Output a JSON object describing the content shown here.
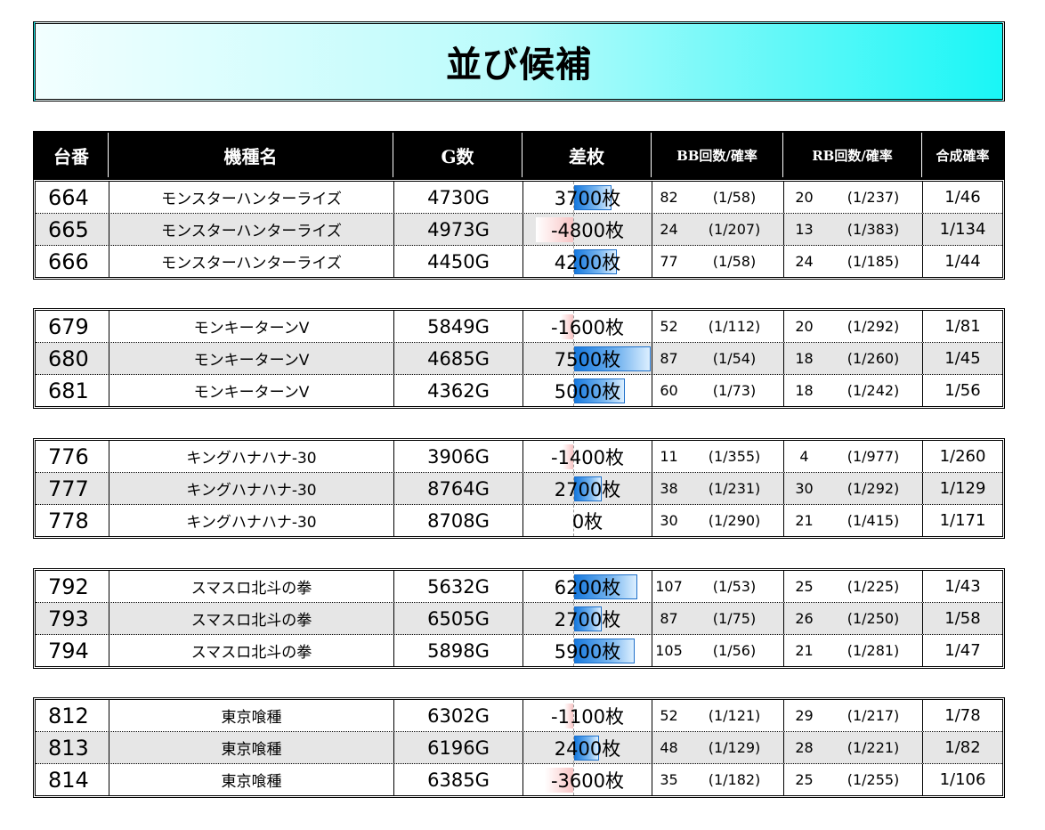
{
  "title": "並び候補",
  "headers": {
    "unit_no": "台番",
    "machine": "機種名",
    "games": "G数",
    "diff": "差枚",
    "bb": "BB回数/確率",
    "rb": "RB回数/確率",
    "combined": "合成確率"
  },
  "colors": {
    "title_gradient": [
      "#f2ffff",
      "#19f6f6"
    ],
    "header_bg": "#000000",
    "alt_row_bg": "#e6e6e6",
    "positive_bar": "#1679de",
    "negative_bar": "#f7c4c4"
  },
  "diff_scale_max": 7500,
  "groups": [
    {
      "rows": [
        {
          "no": "664",
          "name": "モンスターハンターライズ",
          "games": "4730G",
          "diff_value": 3700,
          "diff": "3700枚",
          "bb": "82",
          "bb_rate": "(1/58)",
          "rb": "20",
          "rb_rate": "(1/237)",
          "combined": "1/46"
        },
        {
          "no": "665",
          "name": "モンスターハンターライズ",
          "games": "4973G",
          "diff_value": -4800,
          "diff": "-4800枚",
          "bb": "24",
          "bb_rate": "(1/207)",
          "rb": "13",
          "rb_rate": "(1/383)",
          "combined": "1/134"
        },
        {
          "no": "666",
          "name": "モンスターハンターライズ",
          "games": "4450G",
          "diff_value": 4200,
          "diff": "4200枚",
          "bb": "77",
          "bb_rate": "(1/58)",
          "rb": "24",
          "rb_rate": "(1/185)",
          "combined": "1/44"
        }
      ]
    },
    {
      "rows": [
        {
          "no": "679",
          "name": "モンキーターンV",
          "games": "5849G",
          "diff_value": -1600,
          "diff": "-1600枚",
          "bb": "52",
          "bb_rate": "(1/112)",
          "rb": "20",
          "rb_rate": "(1/292)",
          "combined": "1/81"
        },
        {
          "no": "680",
          "name": "モンキーターンV",
          "games": "4685G",
          "diff_value": 7500,
          "diff": "7500枚",
          "bb": "87",
          "bb_rate": "(1/54)",
          "rb": "18",
          "rb_rate": "(1/260)",
          "combined": "1/45"
        },
        {
          "no": "681",
          "name": "モンキーターンV",
          "games": "4362G",
          "diff_value": 5000,
          "diff": "5000枚",
          "bb": "60",
          "bb_rate": "(1/73)",
          "rb": "18",
          "rb_rate": "(1/242)",
          "combined": "1/56"
        }
      ]
    },
    {
      "rows": [
        {
          "no": "776",
          "name": "キングハナハナ-30",
          "games": "3906G",
          "diff_value": -1400,
          "diff": "-1400枚",
          "bb": "11",
          "bb_rate": "(1/355)",
          "rb": "4",
          "rb_rate": "(1/977)",
          "combined": "1/260"
        },
        {
          "no": "777",
          "name": "キングハナハナ-30",
          "games": "8764G",
          "diff_value": 2700,
          "diff": "2700枚",
          "bb": "38",
          "bb_rate": "(1/231)",
          "rb": "30",
          "rb_rate": "(1/292)",
          "combined": "1/129"
        },
        {
          "no": "778",
          "name": "キングハナハナ-30",
          "games": "8708G",
          "diff_value": 0,
          "diff": "0枚",
          "bb": "30",
          "bb_rate": "(1/290)",
          "rb": "21",
          "rb_rate": "(1/415)",
          "combined": "1/171"
        }
      ]
    },
    {
      "rows": [
        {
          "no": "792",
          "name": "スマスロ北斗の拳",
          "games": "5632G",
          "diff_value": 6200,
          "diff": "6200枚",
          "bb": "107",
          "bb_rate": "(1/53)",
          "rb": "25",
          "rb_rate": "(1/225)",
          "combined": "1/43"
        },
        {
          "no": "793",
          "name": "スマスロ北斗の拳",
          "games": "6505G",
          "diff_value": 2700,
          "diff": "2700枚",
          "bb": "87",
          "bb_rate": "(1/75)",
          "rb": "26",
          "rb_rate": "(1/250)",
          "combined": "1/58"
        },
        {
          "no": "794",
          "name": "スマスロ北斗の拳",
          "games": "5898G",
          "diff_value": 5900,
          "diff": "5900枚",
          "bb": "105",
          "bb_rate": "(1/56)",
          "rb": "21",
          "rb_rate": "(1/281)",
          "combined": "1/47"
        }
      ]
    },
    {
      "rows": [
        {
          "no": "812",
          "name": "東京喰種",
          "games": "6302G",
          "diff_value": -1100,
          "diff": "-1100枚",
          "bb": "52",
          "bb_rate": "(1/121)",
          "rb": "29",
          "rb_rate": "(1/217)",
          "combined": "1/78"
        },
        {
          "no": "813",
          "name": "東京喰種",
          "games": "6196G",
          "diff_value": 2400,
          "diff": "2400枚",
          "bb": "48",
          "bb_rate": "(1/129)",
          "rb": "28",
          "rb_rate": "(1/221)",
          "combined": "1/82"
        },
        {
          "no": "814",
          "name": "東京喰種",
          "games": "6385G",
          "diff_value": -3600,
          "diff": "-3600枚",
          "bb": "35",
          "bb_rate": "(1/182)",
          "rb": "25",
          "rb_rate": "(1/255)",
          "combined": "1/106"
        }
      ]
    }
  ]
}
